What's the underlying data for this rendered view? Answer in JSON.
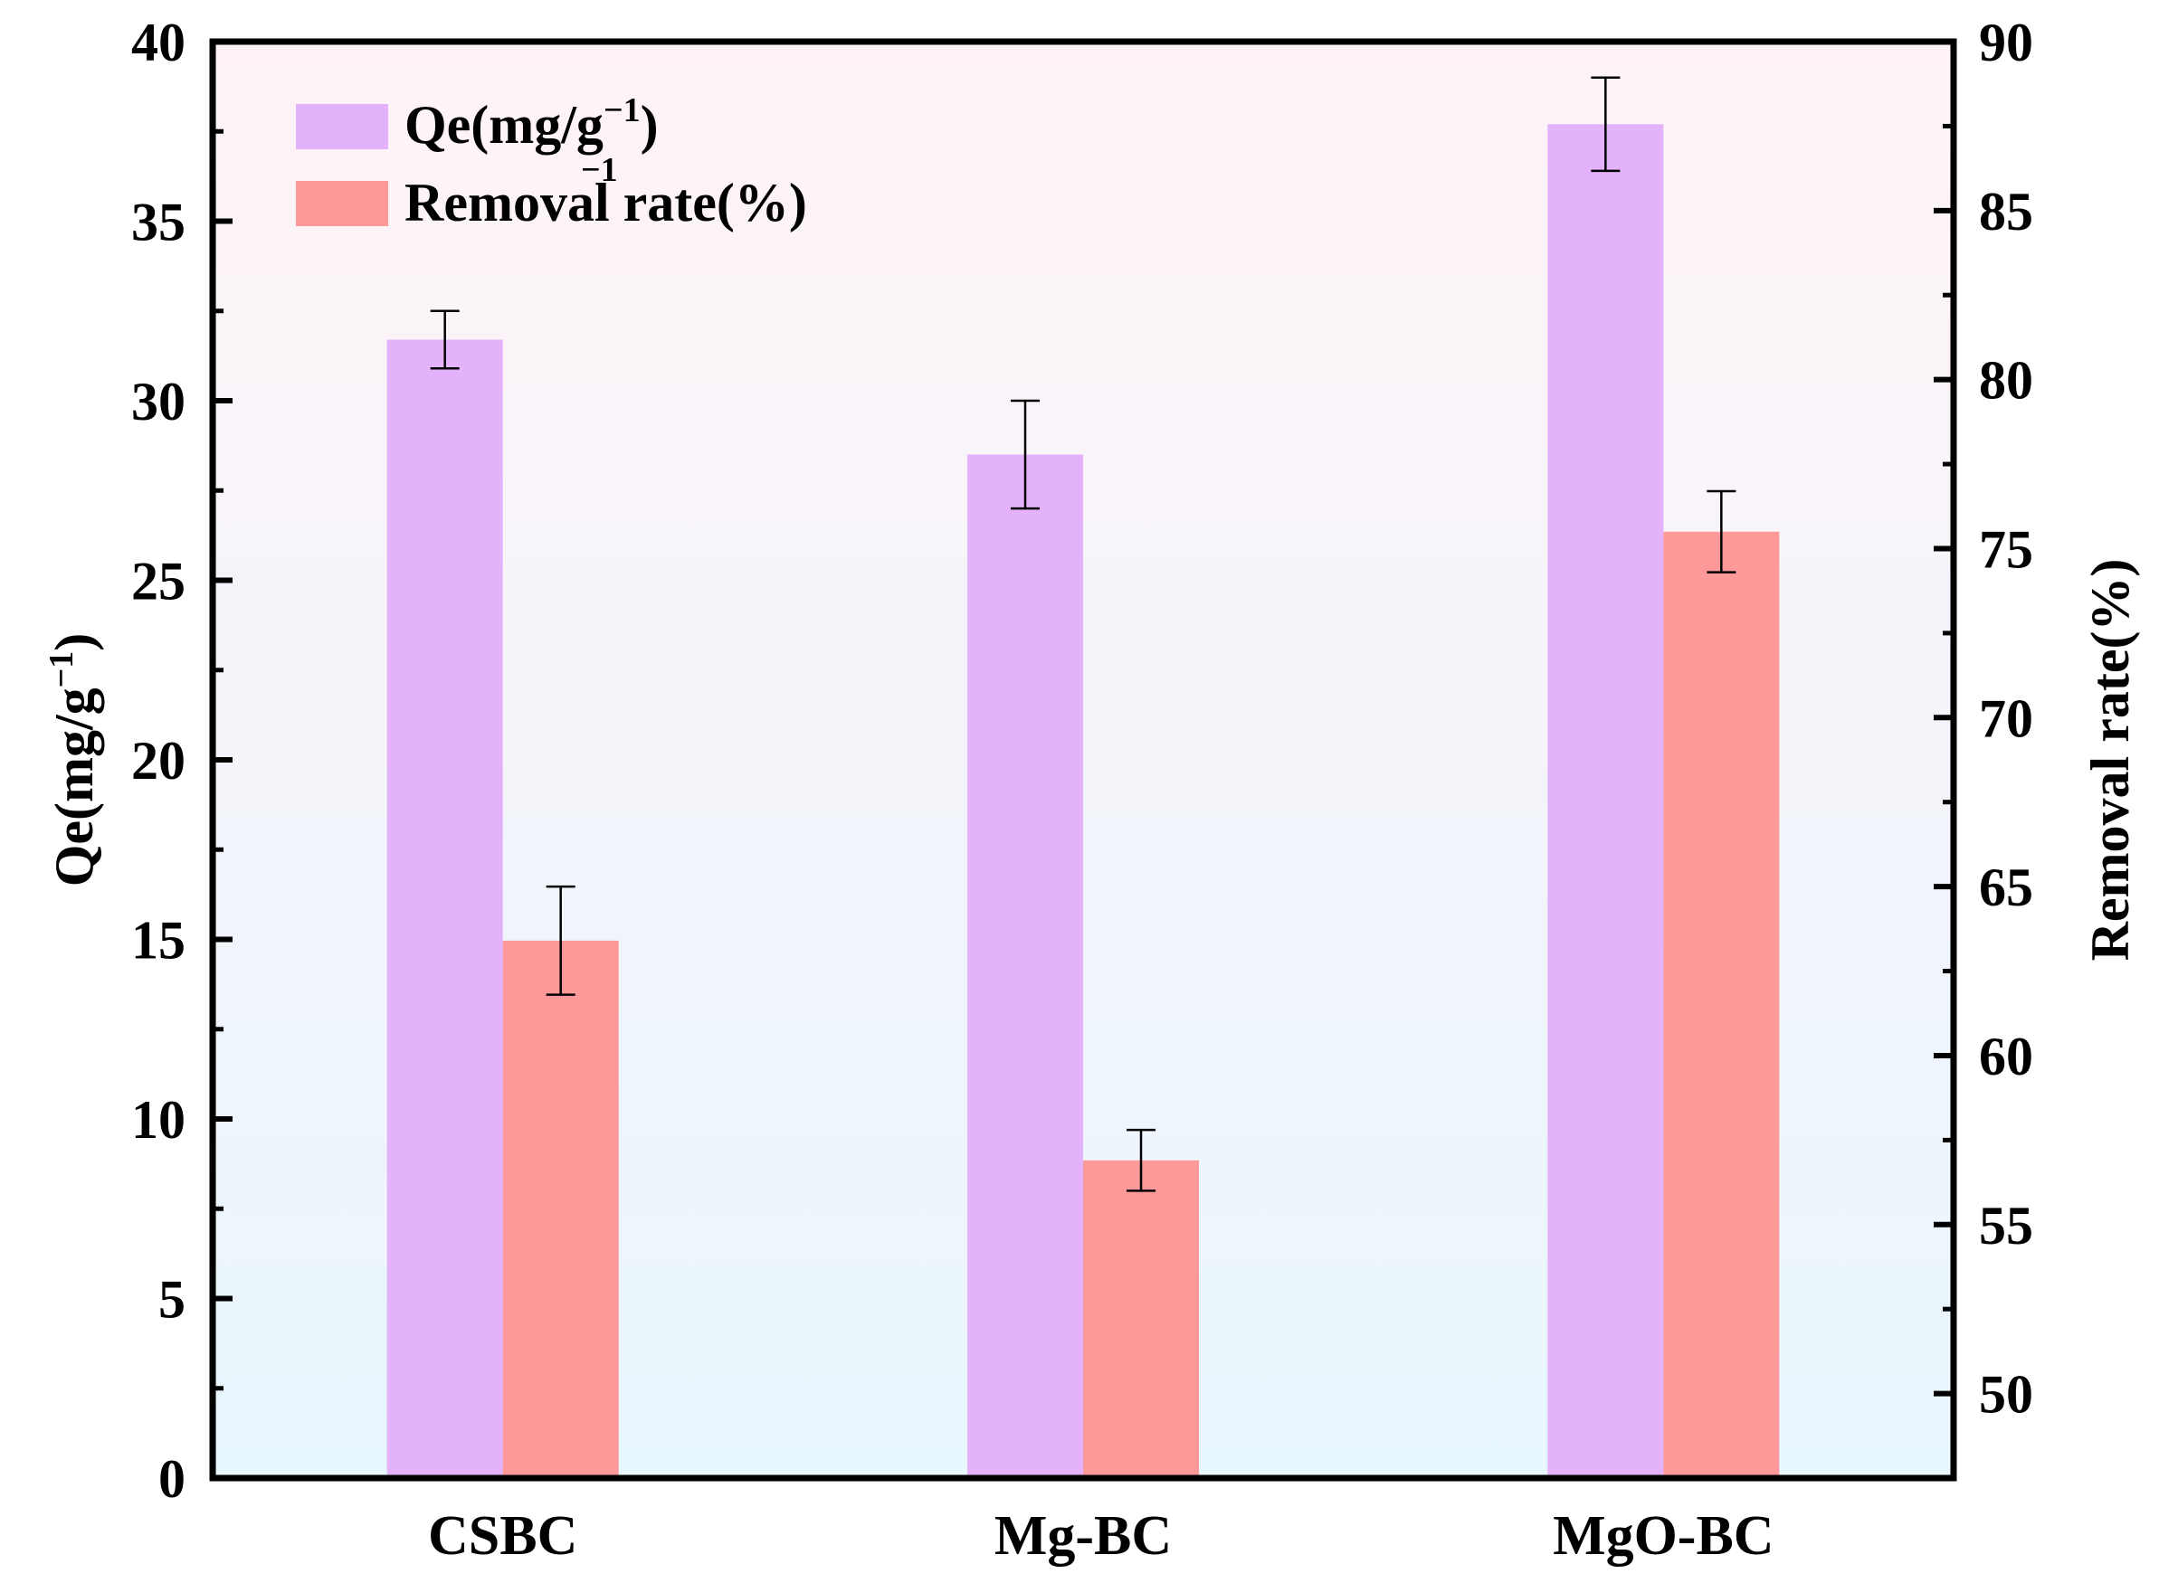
{
  "chart_data": {
    "type": "bar",
    "categories": [
      "CSBC",
      "Mg-BC",
      "MgO-BC"
    ],
    "series": [
      {
        "name": "Qe(mg/g-1)",
        "axis": "left",
        "color": "#e4b1fb",
        "values": [
          31.7,
          28.5,
          37.7
        ],
        "errors": [
          0.8,
          1.5,
          1.3
        ]
      },
      {
        "name": "Removal rate(%)",
        "axis": "right",
        "color": "#fe9999",
        "values": [
          63.4,
          56.9,
          75.5
        ],
        "errors": [
          1.6,
          0.9,
          1.2
        ]
      }
    ],
    "left_axis": {
      "title_main": "Qe(mg/g",
      "title_sup": "−1",
      "title_end": ")",
      "range": [
        0,
        40
      ],
      "ticks": [
        "0",
        "5",
        "10",
        "15",
        "20",
        "25",
        "30",
        "35",
        "40"
      ]
    },
    "right_axis": {
      "title": "Removal rate(%)",
      "range": [
        47.5,
        90
      ],
      "ticks": [
        "50",
        "55",
        "60",
        "65",
        "70",
        "75",
        "80",
        "85",
        "90"
      ]
    },
    "legend": {
      "position": "top-left",
      "items": [
        {
          "main": "Qe(mg/g",
          "sup": "−1",
          "end": ")"
        },
        {
          "main": "Removal rate(%)",
          "overlay": "−1"
        }
      ]
    },
    "background_gradient": [
      "#fff3f8",
      "#e8f6fd"
    ]
  }
}
